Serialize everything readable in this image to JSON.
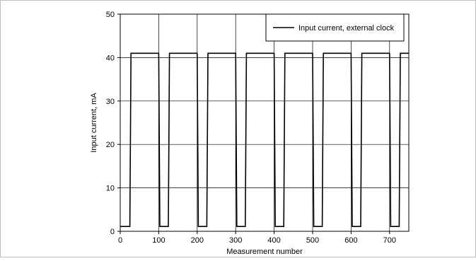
{
  "chart_data": {
    "type": "line",
    "title": "",
    "xlabel": "Measurement number",
    "ylabel": "Input current, mA",
    "xlim": [
      0,
      750
    ],
    "ylim": [
      0,
      50
    ],
    "x_ticks": [
      0,
      100,
      200,
      300,
      400,
      500,
      600,
      700
    ],
    "y_ticks": [
      0,
      10,
      20,
      30,
      40,
      50
    ],
    "grid": true,
    "legend_position": "top-right",
    "series": [
      {
        "name": "Input current, external clock",
        "color": "#000000",
        "x": [
          0,
          25,
          28,
          100,
          103,
          125,
          128,
          200,
          203,
          225,
          228,
          300,
          303,
          325,
          328,
          400,
          403,
          425,
          428,
          500,
          503,
          525,
          528,
          600,
          603,
          625,
          628,
          700,
          703,
          725,
          728,
          750
        ],
        "y": [
          1.1,
          1.1,
          41,
          41,
          1.1,
          1.1,
          41,
          41,
          1.1,
          1.1,
          41,
          41,
          1.1,
          1.1,
          41,
          41,
          1.1,
          1.1,
          41,
          41,
          1.1,
          1.1,
          41,
          41,
          1.1,
          1.1,
          41,
          41,
          1.1,
          1.1,
          41,
          41
        ]
      }
    ]
  }
}
